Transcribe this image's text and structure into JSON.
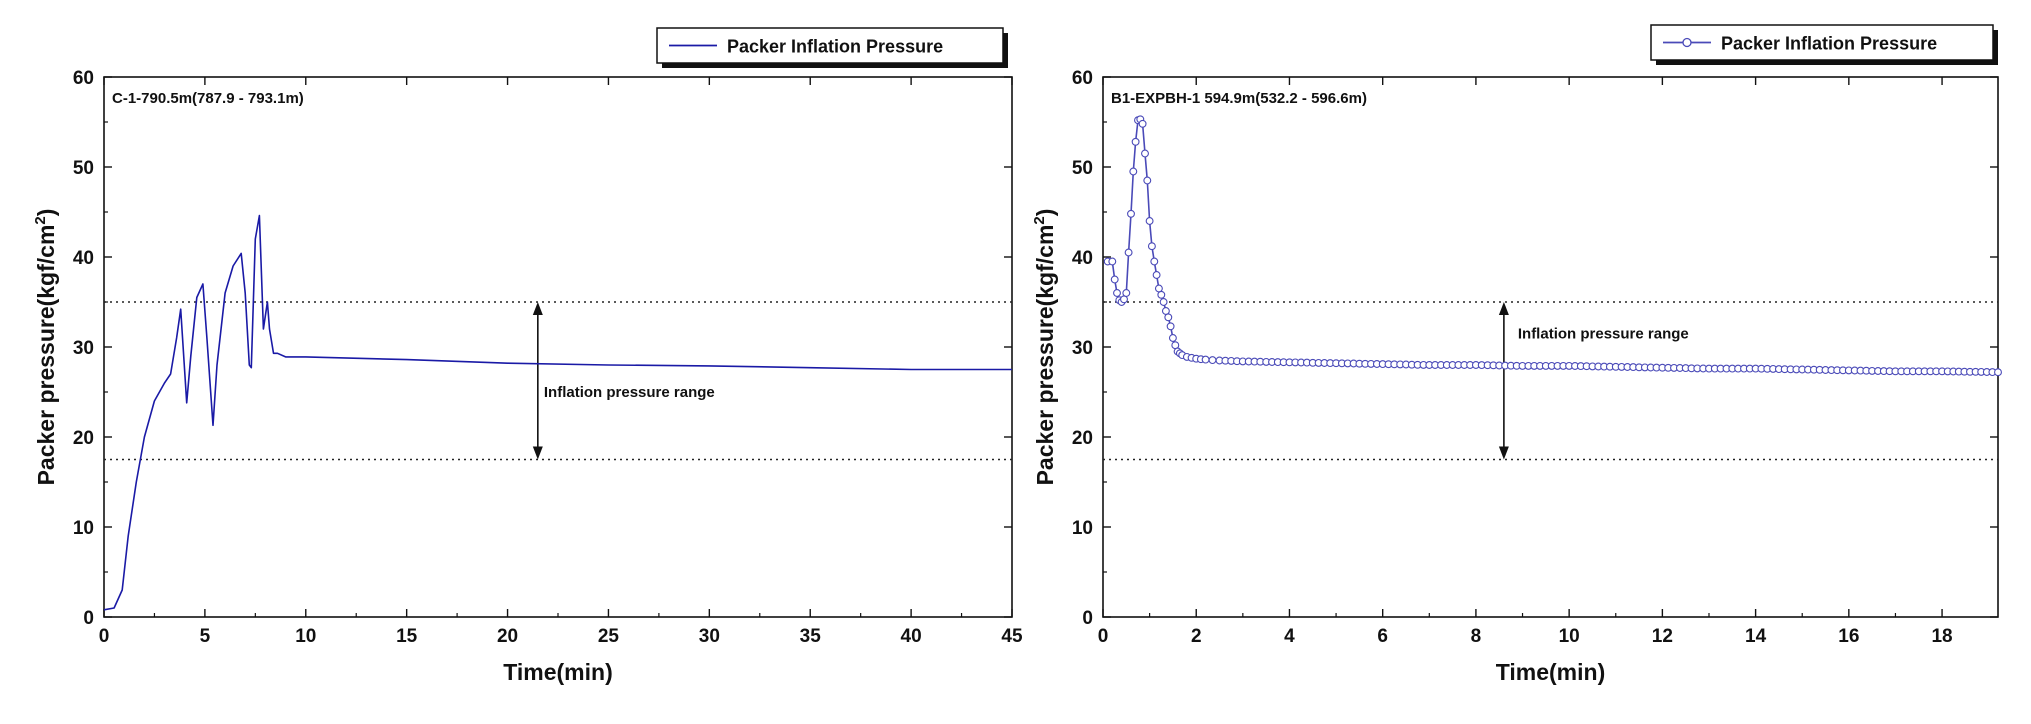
{
  "chart_data": [
    {
      "type": "line",
      "title": "",
      "subtitle": "C-1-790.5m(787.9 - 793.1m)",
      "xlabel": "Time(min)",
      "ylabel": "Packer  pressure(kgf/cm",
      "ylabel_sup": "2",
      "ylabel_close": ")",
      "xlim": [
        0,
        45
      ],
      "ylim": [
        0,
        60
      ],
      "xticks": [
        0,
        5,
        10,
        15,
        20,
        25,
        30,
        35,
        40,
        45
      ],
      "yticks": [
        0,
        10,
        20,
        30,
        40,
        50,
        60
      ],
      "grid": false,
      "legend": "top-right",
      "color": "#1a1aa6",
      "marker": "none",
      "series": [
        {
          "name": "Packer  Inflation  Pressure",
          "x": [
            0,
            0.5,
            0.9,
            1.2,
            1.6,
            2.0,
            2.5,
            3.0,
            3.3,
            3.6,
            3.8,
            4.1,
            4.3,
            4.6,
            4.9,
            5.1,
            5.4,
            5.6,
            6.0,
            6.4,
            6.8,
            7.0,
            7.2,
            7.3,
            7.5,
            7.7,
            7.9,
            8.1,
            8.2,
            8.4,
            8.6,
            9.0,
            10,
            15,
            20,
            25,
            30,
            35,
            40,
            45
          ],
          "y": [
            0.8,
            1.0,
            3.0,
            9.0,
            15.0,
            20.0,
            24.0,
            26.0,
            27.0,
            31.0,
            34.2,
            23.8,
            29.0,
            35.5,
            37.0,
            31.0,
            21.3,
            28.0,
            36.0,
            39.0,
            40.4,
            36.0,
            28.0,
            27.7,
            42.0,
            44.6,
            32.0,
            35.0,
            32.0,
            29.3,
            29.3,
            28.9,
            28.9,
            28.6,
            28.2,
            28.0,
            27.9,
            27.7,
            27.5,
            27.5
          ]
        }
      ],
      "reference_lines": [
        35,
        17.5
      ],
      "arrow": {
        "x": 21.5,
        "y1": 35,
        "y2": 17.5
      },
      "annotation": {
        "text": "Inflation  pressure  range",
        "x": 21.8,
        "y": 25
      }
    },
    {
      "type": "line",
      "title": "",
      "subtitle": "B1-EXPBH-1 594.9m(532.2 - 596.6m)",
      "xlabel": "Time(min)",
      "ylabel": "Packer  pressure(kgf/cm",
      "ylabel_sup": "2",
      "ylabel_close": ")",
      "xlim": [
        0,
        19.2
      ],
      "ylim": [
        0,
        60
      ],
      "xticks": [
        0,
        2,
        4,
        6,
        8,
        10,
        12,
        14,
        16,
        18
      ],
      "yticks": [
        0,
        10,
        20,
        30,
        40,
        50,
        60
      ],
      "grid": false,
      "legend": "top-right",
      "color": "#4a4ab8",
      "marker": "circle",
      "series": [
        {
          "name": "Packer  Inflation  Pressure",
          "x": [
            0.1,
            0.2,
            0.25,
            0.3,
            0.35,
            0.4,
            0.45,
            0.5,
            0.55,
            0.6,
            0.65,
            0.7,
            0.75,
            0.8,
            0.85,
            0.9,
            0.95,
            1.0,
            1.05,
            1.1,
            1.15,
            1.2,
            1.25,
            1.3,
            1.35,
            1.4,
            1.45,
            1.5,
            1.55,
            1.6,
            1.65,
            1.7,
            1.8,
            1.9,
            2.0,
            2.2,
            2.5,
            3.0,
            4.0,
            5.0,
            6.0,
            7.0,
            8.0,
            9.0,
            10.0,
            11.0,
            12.0,
            13.0,
            14.0,
            15.0,
            16.0,
            17.0,
            18.0,
            19.2
          ],
          "y": [
            39.5,
            39.5,
            37.5,
            36.0,
            35.2,
            35.0,
            35.3,
            36.0,
            40.5,
            44.8,
            49.5,
            52.8,
            55.2,
            55.3,
            54.8,
            51.5,
            48.5,
            44.0,
            41.2,
            39.5,
            38.0,
            36.5,
            35.8,
            35.0,
            34.0,
            33.3,
            32.3,
            31.0,
            30.2,
            29.5,
            29.3,
            29.1,
            28.9,
            28.8,
            28.7,
            28.6,
            28.5,
            28.4,
            28.3,
            28.2,
            28.1,
            28.0,
            28.0,
            27.9,
            27.9,
            27.8,
            27.7,
            27.6,
            27.6,
            27.5,
            27.4,
            27.3,
            27.3,
            27.2
          ]
        }
      ],
      "reference_lines": [
        35,
        17.5
      ],
      "arrow": {
        "x": 8.6,
        "y1": 35,
        "y2": 17.5
      },
      "annotation": {
        "text": "Inflation pressure range",
        "x": 8.9,
        "y": 31.5
      }
    }
  ]
}
